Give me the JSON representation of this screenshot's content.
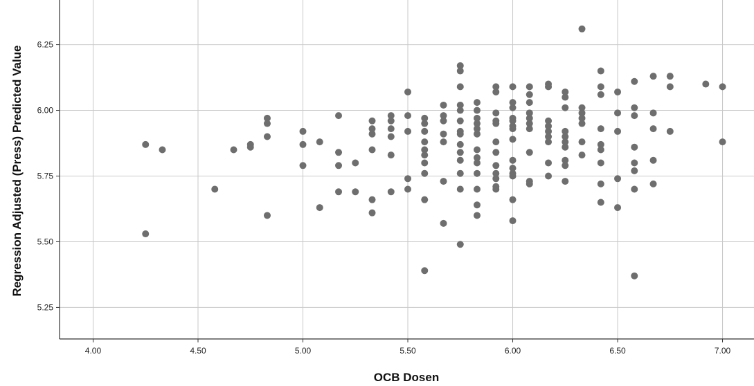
{
  "chart_data": {
    "type": "scatter",
    "title": "",
    "xlabel": "OCB Dosen",
    "ylabel": "Regression Adjusted (Press) Predicted Value",
    "xlim": [
      3.84,
      7.15
    ],
    "ylim": [
      5.13,
      6.42
    ],
    "grid": true,
    "x_ticks": [
      4.0,
      4.5,
      5.0,
      5.5,
      6.0,
      6.5,
      7.0
    ],
    "x_tick_labels": [
      "4.00",
      "4.50",
      "5.00",
      "5.50",
      "6.00",
      "6.50",
      "7.00"
    ],
    "y_ticks": [
      5.25,
      5.5,
      5.75,
      6.0,
      6.25
    ],
    "y_tick_labels": [
      "5.25",
      "5.50",
      "5.75",
      "6.00",
      "6.25"
    ],
    "marker_color": "#6e6e6e",
    "grid_color": "#c8c8c8",
    "points": [
      [
        4.25,
        5.87
      ],
      [
        4.25,
        5.53
      ],
      [
        4.33,
        5.85
      ],
      [
        4.58,
        5.7
      ],
      [
        4.67,
        5.85
      ],
      [
        4.75,
        5.87
      ],
      [
        4.75,
        5.86
      ],
      [
        4.83,
        5.97
      ],
      [
        4.83,
        5.95
      ],
      [
        4.83,
        5.9
      ],
      [
        4.83,
        5.6
      ],
      [
        5.0,
        5.92
      ],
      [
        5.0,
        5.87
      ],
      [
        5.0,
        5.79
      ],
      [
        5.08,
        5.88
      ],
      [
        5.08,
        5.63
      ],
      [
        5.17,
        5.98
      ],
      [
        5.17,
        5.84
      ],
      [
        5.17,
        5.79
      ],
      [
        5.17,
        5.69
      ],
      [
        5.25,
        5.8
      ],
      [
        5.25,
        5.69
      ],
      [
        5.33,
        5.96
      ],
      [
        5.33,
        5.93
      ],
      [
        5.33,
        5.91
      ],
      [
        5.33,
        5.85
      ],
      [
        5.33,
        5.66
      ],
      [
        5.33,
        5.61
      ],
      [
        5.42,
        5.98
      ],
      [
        5.42,
        5.96
      ],
      [
        5.42,
        5.93
      ],
      [
        5.42,
        5.9
      ],
      [
        5.42,
        5.83
      ],
      [
        5.42,
        5.69
      ],
      [
        5.5,
        6.07
      ],
      [
        5.5,
        5.98
      ],
      [
        5.5,
        5.92
      ],
      [
        5.5,
        5.74
      ],
      [
        5.5,
        5.7
      ],
      [
        5.58,
        5.97
      ],
      [
        5.58,
        5.95
      ],
      [
        5.58,
        5.92
      ],
      [
        5.58,
        5.88
      ],
      [
        5.58,
        5.85
      ],
      [
        5.58,
        5.83
      ],
      [
        5.58,
        5.8
      ],
      [
        5.58,
        5.76
      ],
      [
        5.58,
        5.66
      ],
      [
        5.58,
        5.39
      ],
      [
        5.67,
        6.02
      ],
      [
        5.67,
        5.98
      ],
      [
        5.67,
        5.96
      ],
      [
        5.67,
        5.91
      ],
      [
        5.67,
        5.88
      ],
      [
        5.67,
        5.73
      ],
      [
        5.67,
        5.57
      ],
      [
        5.75,
        6.17
      ],
      [
        5.75,
        6.15
      ],
      [
        5.75,
        6.09
      ],
      [
        5.75,
        6.02
      ],
      [
        5.75,
        6.0
      ],
      [
        5.75,
        5.96
      ],
      [
        5.75,
        5.92
      ],
      [
        5.75,
        5.91
      ],
      [
        5.75,
        5.87
      ],
      [
        5.75,
        5.84
      ],
      [
        5.75,
        5.81
      ],
      [
        5.75,
        5.76
      ],
      [
        5.75,
        5.7
      ],
      [
        5.75,
        5.49
      ],
      [
        5.83,
        6.03
      ],
      [
        5.83,
        6.0
      ],
      [
        5.83,
        5.97
      ],
      [
        5.83,
        5.95
      ],
      [
        5.83,
        5.93
      ],
      [
        5.83,
        5.91
      ],
      [
        5.83,
        5.85
      ],
      [
        5.83,
        5.82
      ],
      [
        5.83,
        5.8
      ],
      [
        5.83,
        5.76
      ],
      [
        5.83,
        5.7
      ],
      [
        5.83,
        5.64
      ],
      [
        5.83,
        5.6
      ],
      [
        5.92,
        6.09
      ],
      [
        5.92,
        6.07
      ],
      [
        5.92,
        5.99
      ],
      [
        5.92,
        5.96
      ],
      [
        5.92,
        5.95
      ],
      [
        5.92,
        5.88
      ],
      [
        5.92,
        5.84
      ],
      [
        5.92,
        5.79
      ],
      [
        5.92,
        5.76
      ],
      [
        5.92,
        5.74
      ],
      [
        5.92,
        5.71
      ],
      [
        5.92,
        5.7
      ],
      [
        6.0,
        6.09
      ],
      [
        6.0,
        6.03
      ],
      [
        6.0,
        6.01
      ],
      [
        6.0,
        5.97
      ],
      [
        6.0,
        5.96
      ],
      [
        6.0,
        5.94
      ],
      [
        6.0,
        5.93
      ],
      [
        6.0,
        5.89
      ],
      [
        6.0,
        5.81
      ],
      [
        6.0,
        5.78
      ],
      [
        6.0,
        5.76
      ],
      [
        6.0,
        5.75
      ],
      [
        6.0,
        5.66
      ],
      [
        6.0,
        5.58
      ],
      [
        6.08,
        6.09
      ],
      [
        6.08,
        6.06
      ],
      [
        6.08,
        6.03
      ],
      [
        6.08,
        5.99
      ],
      [
        6.08,
        5.97
      ],
      [
        6.08,
        5.95
      ],
      [
        6.08,
        5.93
      ],
      [
        6.08,
        5.84
      ],
      [
        6.08,
        5.73
      ],
      [
        6.08,
        5.72
      ],
      [
        6.17,
        6.1
      ],
      [
        6.17,
        6.09
      ],
      [
        6.17,
        5.96
      ],
      [
        6.17,
        5.94
      ],
      [
        6.17,
        5.92
      ],
      [
        6.17,
        5.9
      ],
      [
        6.17,
        5.88
      ],
      [
        6.17,
        5.8
      ],
      [
        6.17,
        5.75
      ],
      [
        6.25,
        6.07
      ],
      [
        6.25,
        6.05
      ],
      [
        6.25,
        6.01
      ],
      [
        6.25,
        5.92
      ],
      [
        6.25,
        5.9
      ],
      [
        6.25,
        5.88
      ],
      [
        6.25,
        5.86
      ],
      [
        6.25,
        5.81
      ],
      [
        6.25,
        5.79
      ],
      [
        6.25,
        5.73
      ],
      [
        6.33,
        6.31
      ],
      [
        6.33,
        6.01
      ],
      [
        6.33,
        5.99
      ],
      [
        6.33,
        5.97
      ],
      [
        6.33,
        5.95
      ],
      [
        6.33,
        5.88
      ],
      [
        6.33,
        5.83
      ],
      [
        6.42,
        6.15
      ],
      [
        6.42,
        6.09
      ],
      [
        6.42,
        6.06
      ],
      [
        6.42,
        5.93
      ],
      [
        6.42,
        5.87
      ],
      [
        6.42,
        5.85
      ],
      [
        6.42,
        5.8
      ],
      [
        6.42,
        5.72
      ],
      [
        6.42,
        5.65
      ],
      [
        6.5,
        6.07
      ],
      [
        6.5,
        5.99
      ],
      [
        6.5,
        5.92
      ],
      [
        6.5,
        5.74
      ],
      [
        6.5,
        5.63
      ],
      [
        6.58,
        6.11
      ],
      [
        6.58,
        6.01
      ],
      [
        6.58,
        5.98
      ],
      [
        6.58,
        5.86
      ],
      [
        6.58,
        5.8
      ],
      [
        6.58,
        5.77
      ],
      [
        6.58,
        5.7
      ],
      [
        6.58,
        5.37
      ],
      [
        6.67,
        6.13
      ],
      [
        6.67,
        5.99
      ],
      [
        6.67,
        5.93
      ],
      [
        6.67,
        5.81
      ],
      [
        6.67,
        5.72
      ],
      [
        6.75,
        6.13
      ],
      [
        6.75,
        6.09
      ],
      [
        6.75,
        5.92
      ],
      [
        6.92,
        6.1
      ],
      [
        7.0,
        6.09
      ],
      [
        7.0,
        5.88
      ]
    ]
  }
}
